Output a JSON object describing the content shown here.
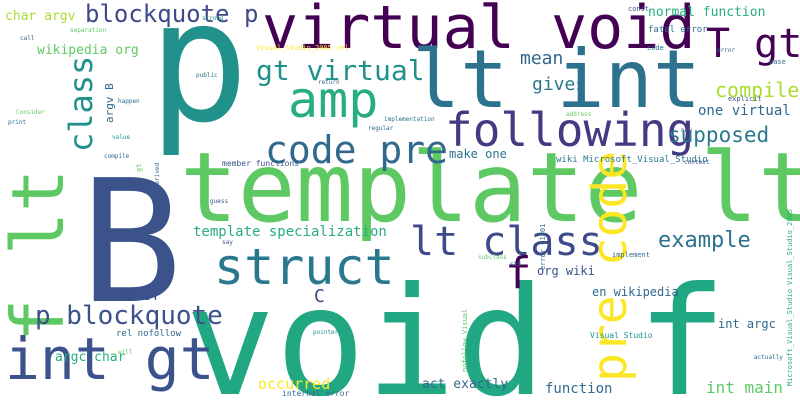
{
  "palette": {
    "dark_purple": "#440154",
    "indigo": "#3b528b",
    "teal": "#21918c",
    "sea_green": "#27ad81",
    "green": "#5ec962",
    "yellow_green": "#aadc32",
    "yellow": "#fde725",
    "background": "#ffffff"
  },
  "words": [
    {
      "text": "p"
    },
    {
      "text": "void f"
    },
    {
      "text": "B"
    },
    {
      "text": "template lt"
    },
    {
      "text": "virtual void"
    },
    {
      "text": "lt int"
    },
    {
      "text": "f lt"
    },
    {
      "text": "int gt"
    },
    {
      "text": "following"
    },
    {
      "text": "amp"
    },
    {
      "text": "struct"
    },
    {
      "text": "code pre"
    },
    {
      "text": "lt class"
    },
    {
      "text": "pre code"
    },
    {
      "text": "T gt"
    },
    {
      "text": "gt virtual"
    },
    {
      "text": "blockquote p"
    },
    {
      "text": "p blockquote"
    },
    {
      "text": "class"
    },
    {
      "text": "f"
    },
    {
      "text": "example"
    },
    {
      "text": "compiler"
    },
    {
      "text": "supposed"
    },
    {
      "text": "mean"
    },
    {
      "text": "gives"
    },
    {
      "text": "one virtual"
    },
    {
      "text": "normal function"
    },
    {
      "text": "template specialization"
    },
    {
      "text": "href"
    },
    {
      "text": "C"
    },
    {
      "text": "wikipedia org"
    },
    {
      "text": "char argv"
    },
    {
      "text": "argc char"
    },
    {
      "text": "occurred"
    },
    {
      "text": "act exactly"
    },
    {
      "text": "function"
    },
    {
      "text": "int main"
    },
    {
      "text": "int argc"
    },
    {
      "text": "en wikipedia"
    },
    {
      "text": "org wiki"
    },
    {
      "text": "make one"
    },
    {
      "text": "argv B"
    },
    {
      "text": "wiki Microsoft_Visual_Studio"
    },
    {
      "text": "fatal error"
    },
    {
      "text": "rel nofollow"
    },
    {
      "text": "member functions"
    },
    {
      "text": "Visual Studio"
    },
    {
      "text": "internal error"
    },
    {
      "text": "nofollow Visual"
    },
    {
      "text": "error C1001"
    },
    {
      "text": "Microsoft_Visual_Studio Visual_Studio_2005"
    },
    {
      "text": "Visual_Studio_2005 rel"
    },
    {
      "text": "explicit"
    },
    {
      "text": "implementation"
    },
    {
      "text": "implement"
    },
    {
      "text": "context"
    },
    {
      "text": "regular"
    },
    {
      "text": "return"
    },
    {
      "text": "separation"
    },
    {
      "text": "strong"
    },
    {
      "text": "const"
    },
    {
      "text": "code"
    },
    {
      "text": "error"
    },
    {
      "text": "base"
    },
    {
      "text": "new"
    },
    {
      "text": "call"
    },
    {
      "text": "Consider"
    },
    {
      "text": "print"
    },
    {
      "text": "happen"
    },
    {
      "text": "value"
    },
    {
      "text": "compile"
    },
    {
      "text": "derived"
    },
    {
      "text": "guess"
    },
    {
      "text": "say"
    },
    {
      "text": "std"
    },
    {
      "text": "subclass"
    },
    {
      "text": "address"
    },
    {
      "text": "public"
    },
    {
      "text": "pointers"
    },
    {
      "text": "will"
    },
    {
      "text": "actually"
    },
    {
      "text": "gt"
    }
  ]
}
